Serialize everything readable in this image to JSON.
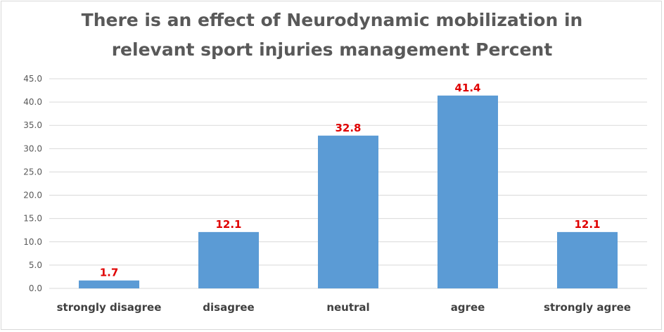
{
  "chart_data": {
    "type": "bar",
    "title_lines": [
      "There is an effect of Neurodynamic mobilization in",
      "relevant sport injuries management Percent"
    ],
    "categories": [
      "strongly disagree",
      "disagree",
      "neutral",
      "agree",
      "strongly agree"
    ],
    "values": [
      1.7,
      12.1,
      32.8,
      41.4,
      12.1
    ],
    "data_labels": [
      "1.7",
      "12.1",
      "32.8",
      "41.4",
      "12.1"
    ],
    "y_ticks": [
      "0.0",
      "5.0",
      "10.0",
      "15.0",
      "20.0",
      "25.0",
      "30.0",
      "35.0",
      "40.0",
      "45.0"
    ],
    "ylim": [
      0,
      45
    ],
    "grid": true,
    "legend": "none",
    "colors": {
      "bar": "#5b9bd5",
      "data_label": "#e00000",
      "grid": "#d9d9d9",
      "title": "#595959"
    }
  }
}
